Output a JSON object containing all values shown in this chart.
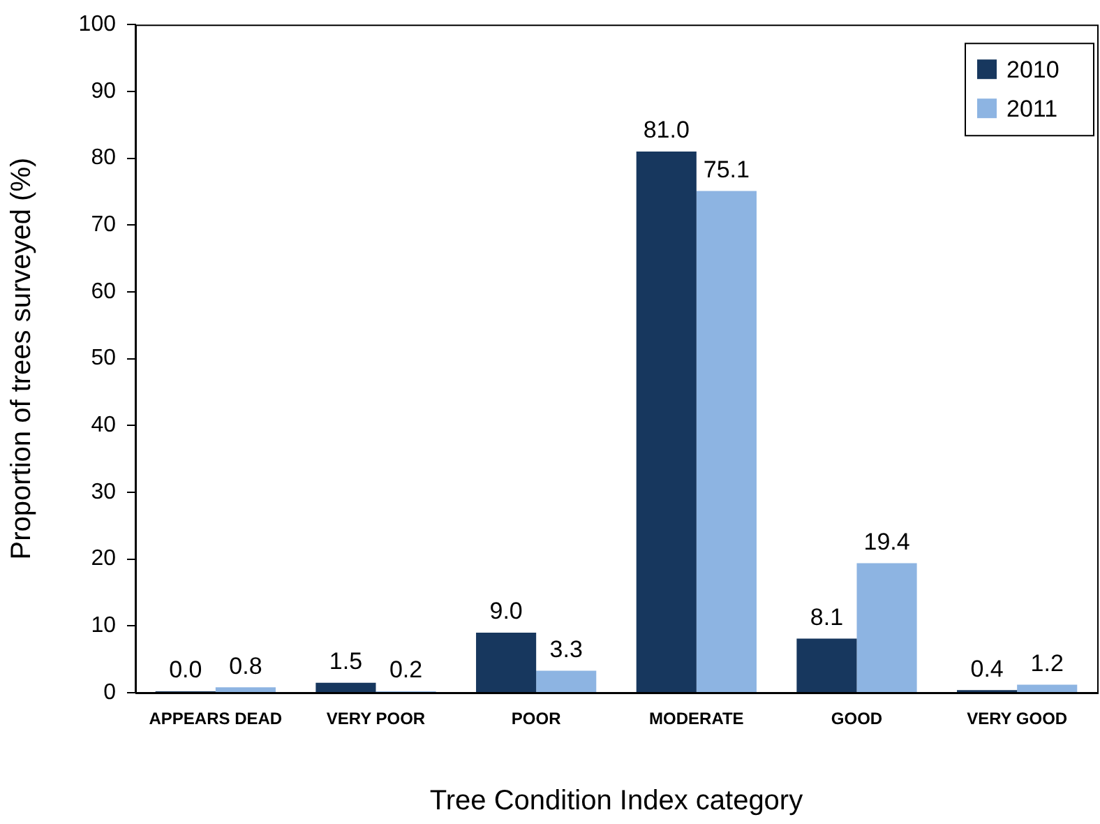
{
  "chart_data": {
    "type": "bar",
    "xlabel": "Tree Condition Index category",
    "ylabel": "Proportion of trees surveyed (%)",
    "categories": [
      "APPEARS DEAD",
      "VERY POOR",
      "POOR",
      "MODERATE",
      "GOOD",
      "VERY GOOD"
    ],
    "series": [
      {
        "name": "2010",
        "color": "#17375e",
        "values": [
          0.0,
          1.5,
          9.0,
          81.0,
          8.1,
          0.4
        ],
        "value_labels": [
          "0.0",
          "1.5",
          "9.0",
          "81.0",
          "8.1",
          "0.4"
        ]
      },
      {
        "name": "2011",
        "color": "#8db4e2",
        "values": [
          0.8,
          0.2,
          3.3,
          75.1,
          19.4,
          1.2
        ],
        "value_labels": [
          "0.8",
          "0.2",
          "3.3",
          "75.1",
          "19.4",
          "1.2"
        ]
      }
    ],
    "ylim": [
      0,
      100
    ],
    "yticks": [
      0,
      10,
      20,
      30,
      40,
      50,
      60,
      70,
      80,
      90,
      100
    ],
    "grid": false,
    "legend": "top right"
  }
}
